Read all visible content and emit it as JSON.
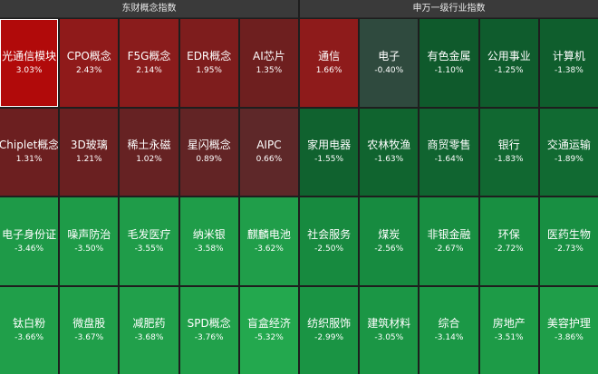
{
  "left_panel": {
    "title": "东财概念指数",
    "cells": [
      {
        "name": "光通信模块",
        "pct": "3.03%",
        "color": "#b10a0a"
      },
      {
        "name": "CPO概念",
        "pct": "2.43%",
        "color": "#8f1a1a"
      },
      {
        "name": "F5G概念",
        "pct": "2.14%",
        "color": "#8a1c1c"
      },
      {
        "name": "EDR概念",
        "pct": "1.95%",
        "color": "#7e1d1d"
      },
      {
        "name": "AI芯片",
        "pct": "1.35%",
        "color": "#6e1f1f"
      },
      {
        "name": "Chiplet概念",
        "pct": "1.31%",
        "color": "#6c1f20"
      },
      {
        "name": "3D玻璃",
        "pct": "1.21%",
        "color": "#6a2021"
      },
      {
        "name": "稀土永磁",
        "pct": "1.02%",
        "color": "#662223"
      },
      {
        "name": "星闪概念",
        "pct": "0.89%",
        "color": "#622425"
      },
      {
        "name": "AIPC",
        "pct": "0.66%",
        "color": "#5e2829"
      },
      {
        "name": "电子身份证",
        "pct": "-3.46%",
        "color": "#1e9a48"
      },
      {
        "name": "噪声防治",
        "pct": "-3.50%",
        "color": "#1e9b48"
      },
      {
        "name": "毛发医疗",
        "pct": "-3.55%",
        "color": "#1f9c49"
      },
      {
        "name": "纳米银",
        "pct": "-3.58%",
        "color": "#1f9d49"
      },
      {
        "name": "麒麟电池",
        "pct": "-3.62%",
        "color": "#209e4a"
      },
      {
        "name": "钛白粉",
        "pct": "-3.66%",
        "color": "#209f4a"
      },
      {
        "name": "微盘股",
        "pct": "-3.67%",
        "color": "#209f4a"
      },
      {
        "name": "减肥药",
        "pct": "-3.68%",
        "color": "#21a04b"
      },
      {
        "name": "SPD概念",
        "pct": "-3.76%",
        "color": "#21a14b"
      },
      {
        "name": "盲盒经济",
        "pct": "-5.32%",
        "color": "#23a84e"
      }
    ]
  },
  "right_panel": {
    "title": "申万一级行业指数",
    "cells": [
      {
        "name": "通信",
        "pct": "1.66%",
        "color": "#8e1b1b"
      },
      {
        "name": "电子",
        "pct": "-0.40%",
        "color": "#2f4a3e"
      },
      {
        "name": "有色金属",
        "pct": "-1.10%",
        "color": "#0f5a2c"
      },
      {
        "name": "公用事业",
        "pct": "-1.25%",
        "color": "#0f5c2d"
      },
      {
        "name": "计算机",
        "pct": "-1.38%",
        "color": "#0f5e2d"
      },
      {
        "name": "家用电器",
        "pct": "-1.55%",
        "color": "#10622f"
      },
      {
        "name": "农林牧渔",
        "pct": "-1.63%",
        "color": "#10642f"
      },
      {
        "name": "商贸零售",
        "pct": "-1.64%",
        "color": "#106430"
      },
      {
        "name": "银行",
        "pct": "-1.83%",
        "color": "#116831"
      },
      {
        "name": "交通运输",
        "pct": "-1.89%",
        "color": "#116a32"
      },
      {
        "name": "社会服务",
        "pct": "-2.50%",
        "color": "#178a3f"
      },
      {
        "name": "煤炭",
        "pct": "-2.56%",
        "color": "#178b40"
      },
      {
        "name": "非银金融",
        "pct": "-2.67%",
        "color": "#188e41"
      },
      {
        "name": "环保",
        "pct": "-2.72%",
        "color": "#188f41"
      },
      {
        "name": "医药生物",
        "pct": "-2.73%",
        "color": "#188f42"
      },
      {
        "name": "纺织服饰",
        "pct": "-2.99%",
        "color": "#1a9444"
      },
      {
        "name": "建筑材料",
        "pct": "-3.05%",
        "color": "#1b9645"
      },
      {
        "name": "综合",
        "pct": "-3.14%",
        "color": "#1b9846"
      },
      {
        "name": "房地产",
        "pct": "-3.51%",
        "color": "#1d9b47"
      },
      {
        "name": "美容护理",
        "pct": "-3.86%",
        "color": "#1f9e49"
      }
    ]
  }
}
